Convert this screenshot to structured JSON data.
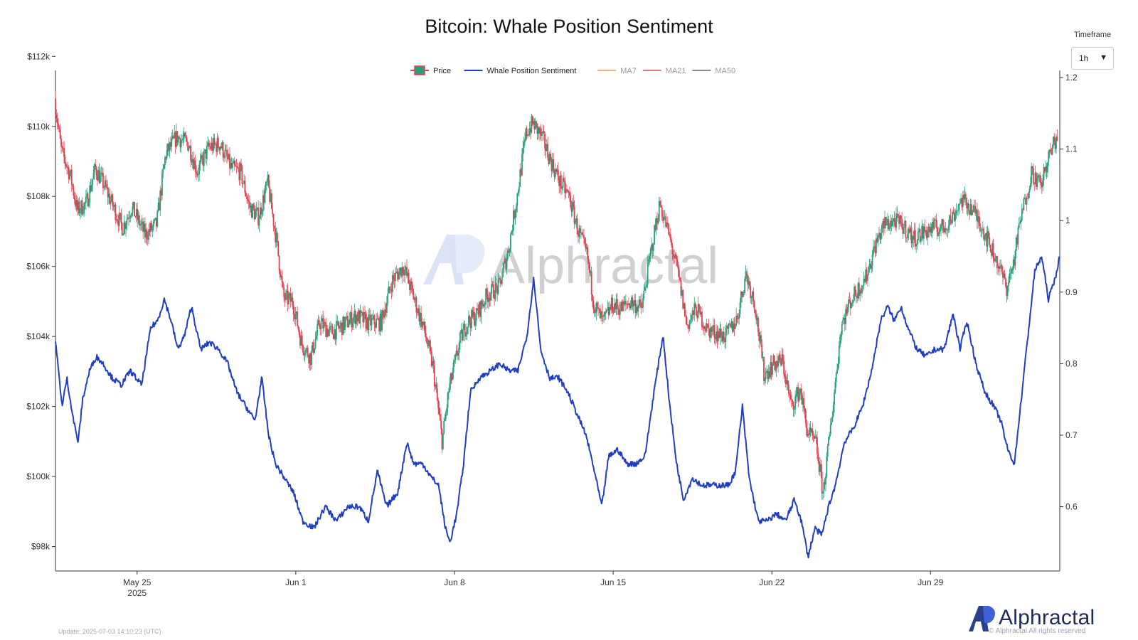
{
  "timeframe": {
    "label": "Timeframe",
    "value": "1h",
    "arrow": "▼"
  },
  "watermark": {
    "text": "Alphractal"
  },
  "brand": {
    "name": "Alphractal",
    "rights": "© Alphractal All rights reserved"
  },
  "update_text": "Update: 2025-07-03 14:10:23 (UTC)",
  "colors": {
    "up": "#26a17b",
    "down": "#e0404e",
    "sentiment": "#1f3fbf",
    "ma7": "#f2b27e",
    "ma21": "#e7777f",
    "ma50": "#8a8a8a"
  },
  "chart_data": {
    "type": "line",
    "title": "Bitcoin: Whale Position Sentiment",
    "legend": {
      "placement": "top-center",
      "entries": [
        {
          "name": "Price",
          "style": "candle"
        },
        {
          "name": "Whale Position Sentiment",
          "style": "line",
          "color": "#1f3fbf"
        },
        {
          "name": "MA7",
          "style": "line",
          "color": "#f2b27e",
          "muted": true
        },
        {
          "name": "MA21",
          "style": "line",
          "color": "#e7777f",
          "muted": true
        },
        {
          "name": "MA50",
          "style": "line",
          "color": "#8a8a8a",
          "muted": true
        }
      ]
    },
    "x_axis": {
      "range": [
        -3.6,
        40.7
      ],
      "ticks": [
        {
          "label": "May 25",
          "sub": "2025",
          "value": 0
        },
        {
          "label": "Jun 1",
          "value": 7
        },
        {
          "label": "Jun 8",
          "value": 14
        },
        {
          "label": "Jun 15",
          "value": 21
        },
        {
          "label": "Jun 22",
          "value": 28
        },
        {
          "label": "Jun 29",
          "value": 35
        }
      ]
    },
    "y_left": {
      "range": [
        97300,
        111600
      ],
      "ticks": [
        {
          "label": "$98k",
          "value": 98000
        },
        {
          "label": "$100k",
          "value": 100000
        },
        {
          "label": "$102k",
          "value": 102000
        },
        {
          "label": "$104k",
          "value": 104000
        },
        {
          "label": "$106k",
          "value": 106000
        },
        {
          "label": "$108k",
          "value": 108000
        },
        {
          "label": "$110k",
          "value": 110000
        },
        {
          "label": "$112k",
          "value": 112000
        }
      ]
    },
    "y_right": {
      "range": [
        0.51,
        1.21
      ],
      "ticks": [
        {
          "label": "0.6",
          "value": 0.6
        },
        {
          "label": "0.7",
          "value": 0.7
        },
        {
          "label": "0.8",
          "value": 0.8
        },
        {
          "label": "0.9",
          "value": 0.9
        },
        {
          "label": "1",
          "value": 1.0
        },
        {
          "label": "1.1",
          "value": 1.1
        },
        {
          "label": "1.2",
          "value": 1.2
        }
      ]
    },
    "price_path": [
      [
        -3.6,
        110800
      ],
      [
        -3.3,
        109300
      ],
      [
        -2.9,
        108600
      ],
      [
        -2.6,
        107600
      ],
      [
        -2.2,
        107800
      ],
      [
        -1.8,
        108800
      ],
      [
        -1.4,
        108300
      ],
      [
        -1.0,
        107700
      ],
      [
        -0.6,
        107100
      ],
      [
        -0.2,
        107700
      ],
      [
        0.4,
        106900
      ],
      [
        0.9,
        107200
      ],
      [
        1.3,
        109200
      ],
      [
        1.8,
        109700
      ],
      [
        2.3,
        109500
      ],
      [
        2.7,
        108700
      ],
      [
        3.2,
        109400
      ],
      [
        3.7,
        109500
      ],
      [
        4.2,
        108800
      ],
      [
        4.6,
        108700
      ],
      [
        5.0,
        107700
      ],
      [
        5.4,
        107400
      ],
      [
        5.8,
        108400
      ],
      [
        6.2,
        106700
      ],
      [
        6.5,
        105100
      ],
      [
        6.9,
        105000
      ],
      [
        7.3,
        103800
      ],
      [
        7.7,
        103400
      ],
      [
        8.1,
        104400
      ],
      [
        8.6,
        104100
      ],
      [
        9.1,
        104300
      ],
      [
        9.7,
        104600
      ],
      [
        10.2,
        104400
      ],
      [
        10.8,
        104400
      ],
      [
        11.3,
        105600
      ],
      [
        11.8,
        106000
      ],
      [
        12.3,
        105000
      ],
      [
        12.7,
        104200
      ],
      [
        13.1,
        103100
      ],
      [
        13.5,
        101000
      ],
      [
        13.8,
        102500
      ],
      [
        14.3,
        103900
      ],
      [
        14.6,
        104400
      ],
      [
        15.0,
        104600
      ],
      [
        15.5,
        105200
      ],
      [
        16.0,
        105400
      ],
      [
        16.4,
        106400
      ],
      [
        16.8,
        108000
      ],
      [
        17.2,
        109800
      ],
      [
        17.5,
        110100
      ],
      [
        17.9,
        109700
      ],
      [
        18.3,
        109000
      ],
      [
        18.7,
        108400
      ],
      [
        19.1,
        108000
      ],
      [
        19.5,
        107000
      ],
      [
        19.9,
        106300
      ],
      [
        20.2,
        104900
      ],
      [
        20.6,
        104400
      ],
      [
        21.0,
        104900
      ],
      [
        21.4,
        104800
      ],
      [
        21.8,
        105000
      ],
      [
        22.3,
        104800
      ],
      [
        22.7,
        106400
      ],
      [
        23.1,
        107800
      ],
      [
        23.5,
        106900
      ],
      [
        23.9,
        105800
      ],
      [
        24.3,
        104300
      ],
      [
        24.7,
        104800
      ],
      [
        25.2,
        104200
      ],
      [
        25.6,
        104100
      ],
      [
        26.0,
        104000
      ],
      [
        26.5,
        104500
      ],
      [
        26.9,
        105800
      ],
      [
        27.3,
        104900
      ],
      [
        27.7,
        102900
      ],
      [
        28.1,
        103200
      ],
      [
        28.5,
        103300
      ],
      [
        28.9,
        102000
      ],
      [
        29.3,
        102500
      ],
      [
        29.6,
        101300
      ],
      [
        30.0,
        100900
      ],
      [
        30.3,
        99500
      ],
      [
        30.7,
        101800
      ],
      [
        31.1,
        104300
      ],
      [
        31.5,
        105000
      ],
      [
        31.9,
        105400
      ],
      [
        32.2,
        105700
      ],
      [
        32.6,
        106600
      ],
      [
        33.0,
        107200
      ],
      [
        33.5,
        107300
      ],
      [
        33.9,
        107100
      ],
      [
        34.3,
        106800
      ],
      [
        34.8,
        107000
      ],
      [
        35.2,
        107100
      ],
      [
        35.6,
        107100
      ],
      [
        36.0,
        107400
      ],
      [
        36.4,
        107900
      ],
      [
        36.8,
        107700
      ],
      [
        37.2,
        107300
      ],
      [
        37.6,
        106700
      ],
      [
        38.0,
        106100
      ],
      [
        38.4,
        105400
      ],
      [
        38.7,
        106100
      ],
      [
        39.0,
        107300
      ],
      [
        39.5,
        108700
      ],
      [
        39.9,
        108300
      ],
      [
        40.3,
        109200
      ],
      [
        40.6,
        109700
      ]
    ],
    "sentiment_path": [
      [
        -3.6,
        0.83
      ],
      [
        -3.3,
        0.74
      ],
      [
        -3.1,
        0.78
      ],
      [
        -2.8,
        0.72
      ],
      [
        -2.6,
        0.69
      ],
      [
        -2.4,
        0.75
      ],
      [
        -2.1,
        0.79
      ],
      [
        -1.8,
        0.81
      ],
      [
        -1.5,
        0.8
      ],
      [
        -1.1,
        0.78
      ],
      [
        -0.7,
        0.77
      ],
      [
        -0.3,
        0.79
      ],
      [
        0.2,
        0.77
      ],
      [
        0.6,
        0.85
      ],
      [
        0.9,
        0.86
      ],
      [
        1.2,
        0.89
      ],
      [
        1.5,
        0.86
      ],
      [
        1.8,
        0.82
      ],
      [
        2.1,
        0.84
      ],
      [
        2.4,
        0.88
      ],
      [
        2.8,
        0.82
      ],
      [
        3.2,
        0.83
      ],
      [
        3.6,
        0.82
      ],
      [
        4.0,
        0.8
      ],
      [
        4.4,
        0.76
      ],
      [
        4.8,
        0.74
      ],
      [
        5.2,
        0.72
      ],
      [
        5.5,
        0.78
      ],
      [
        5.8,
        0.7
      ],
      [
        6.1,
        0.66
      ],
      [
        6.5,
        0.64
      ],
      [
        6.9,
        0.62
      ],
      [
        7.3,
        0.58
      ],
      [
        7.8,
        0.57
      ],
      [
        8.3,
        0.6
      ],
      [
        8.8,
        0.58
      ],
      [
        9.3,
        0.6
      ],
      [
        9.8,
        0.6
      ],
      [
        10.2,
        0.58
      ],
      [
        10.6,
        0.65
      ],
      [
        11.0,
        0.6
      ],
      [
        11.5,
        0.62
      ],
      [
        11.9,
        0.69
      ],
      [
        12.2,
        0.66
      ],
      [
        12.6,
        0.66
      ],
      [
        13.0,
        0.64
      ],
      [
        13.3,
        0.63
      ],
      [
        13.6,
        0.57
      ],
      [
        13.8,
        0.55
      ],
      [
        14.1,
        0.59
      ],
      [
        14.4,
        0.66
      ],
      [
        14.7,
        0.76
      ],
      [
        15.1,
        0.78
      ],
      [
        15.6,
        0.79
      ],
      [
        16.0,
        0.8
      ],
      [
        16.4,
        0.79
      ],
      [
        16.8,
        0.79
      ],
      [
        17.2,
        0.84
      ],
      [
        17.5,
        0.92
      ],
      [
        17.8,
        0.82
      ],
      [
        18.2,
        0.78
      ],
      [
        18.6,
        0.78
      ],
      [
        19.0,
        0.76
      ],
      [
        19.4,
        0.73
      ],
      [
        19.8,
        0.7
      ],
      [
        20.1,
        0.66
      ],
      [
        20.5,
        0.6
      ],
      [
        20.8,
        0.67
      ],
      [
        21.2,
        0.68
      ],
      [
        21.6,
        0.66
      ],
      [
        22.0,
        0.66
      ],
      [
        22.4,
        0.67
      ],
      [
        22.8,
        0.76
      ],
      [
        23.2,
        0.84
      ],
      [
        23.5,
        0.74
      ],
      [
        23.8,
        0.66
      ],
      [
        24.1,
        0.61
      ],
      [
        24.5,
        0.64
      ],
      [
        24.9,
        0.63
      ],
      [
        25.3,
        0.63
      ],
      [
        25.7,
        0.63
      ],
      [
        26.1,
        0.63
      ],
      [
        26.4,
        0.65
      ],
      [
        26.7,
        0.74
      ],
      [
        27.0,
        0.64
      ],
      [
        27.4,
        0.58
      ],
      [
        27.8,
        0.58
      ],
      [
        28.2,
        0.59
      ],
      [
        28.6,
        0.58
      ],
      [
        29.0,
        0.61
      ],
      [
        29.3,
        0.58
      ],
      [
        29.6,
        0.53
      ],
      [
        29.9,
        0.57
      ],
      [
        30.2,
        0.56
      ],
      [
        30.5,
        0.6
      ],
      [
        30.8,
        0.63
      ],
      [
        31.2,
        0.69
      ],
      [
        31.6,
        0.71
      ],
      [
        32.0,
        0.74
      ],
      [
        32.4,
        0.79
      ],
      [
        32.8,
        0.86
      ],
      [
        33.1,
        0.88
      ],
      [
        33.4,
        0.86
      ],
      [
        33.7,
        0.88
      ],
      [
        34.0,
        0.85
      ],
      [
        34.4,
        0.82
      ],
      [
        34.8,
        0.81
      ],
      [
        35.2,
        0.82
      ],
      [
        35.6,
        0.82
      ],
      [
        36.0,
        0.87
      ],
      [
        36.3,
        0.82
      ],
      [
        36.6,
        0.86
      ],
      [
        37.0,
        0.8
      ],
      [
        37.4,
        0.76
      ],
      [
        37.8,
        0.74
      ],
      [
        38.1,
        0.72
      ],
      [
        38.4,
        0.68
      ],
      [
        38.7,
        0.66
      ],
      [
        39.0,
        0.75
      ],
      [
        39.3,
        0.84
      ],
      [
        39.6,
        0.93
      ],
      [
        39.9,
        0.95
      ],
      [
        40.2,
        0.89
      ],
      [
        40.5,
        0.92
      ],
      [
        40.7,
        0.95
      ]
    ]
  }
}
